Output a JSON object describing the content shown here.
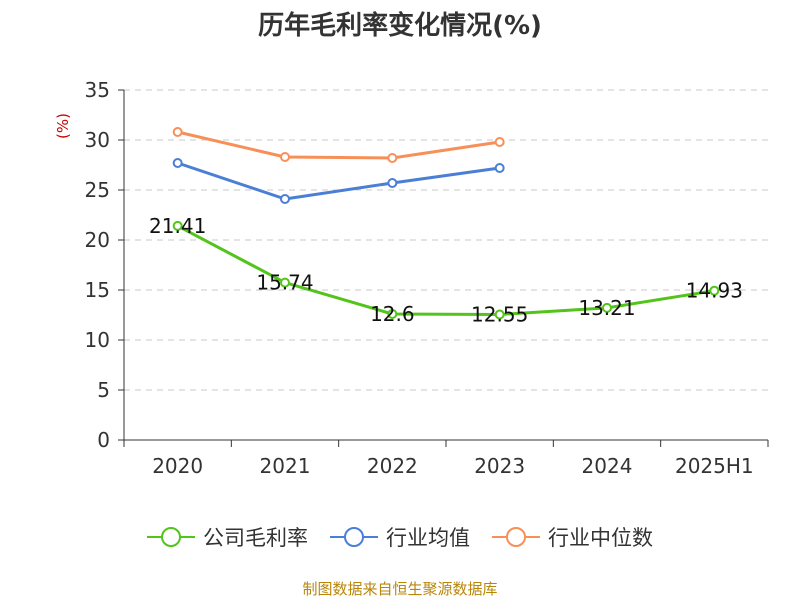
{
  "chart_data": {
    "type": "line",
    "title": "历年毛利率变化情况(%)",
    "ylabel": "(%)",
    "categories": [
      "2020",
      "2021",
      "2022",
      "2023",
      "2024",
      "2025H1"
    ],
    "ylim": [
      0,
      35
    ],
    "yticks": [
      0,
      5,
      10,
      15,
      20,
      25,
      30,
      35
    ],
    "grid": true,
    "legend_position": "bottom",
    "series": [
      {
        "name": "公司毛利率",
        "color": "#52c41a",
        "values": [
          21.41,
          15.74,
          12.6,
          12.55,
          13.21,
          14.93
        ],
        "labels": [
          "21.41",
          "15.74",
          "12.6",
          "12.55",
          "13.21",
          "14.93"
        ],
        "show_labels": true
      },
      {
        "name": "行业均值",
        "color": "#4a7fd6",
        "values": [
          27.7,
          24.1,
          25.7,
          27.2,
          null,
          null
        ],
        "show_labels": false
      },
      {
        "name": "行业中位数",
        "color": "#f79058",
        "values": [
          30.8,
          28.3,
          28.2,
          29.8,
          null,
          null
        ],
        "show_labels": false
      }
    ],
    "source": "制图数据来自恒生聚源数据库"
  }
}
